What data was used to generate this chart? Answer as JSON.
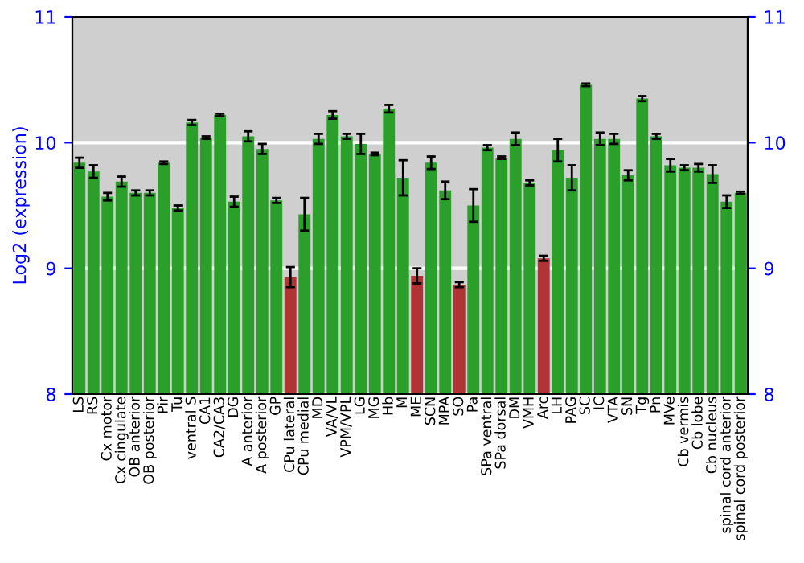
{
  "chart_data": {
    "type": "bar",
    "ylabel": "Log2 (expression)",
    "categories": [
      "LS",
      "RS",
      "Cx motor",
      "Cx cingulate",
      "OB anterior",
      "OB posterior",
      "Pir",
      "Tu",
      "ventral S",
      "CA1",
      "CA2/CA3",
      "DG",
      "A anterior",
      "A posterior",
      "GP",
      "CPu lateral",
      "CPu medial",
      "MD",
      "VA/VL",
      "VPM/VPL",
      "LG",
      "MG",
      "Hb",
      "M",
      "ME",
      "SCN",
      "MPA",
      "SO",
      "Pa",
      "SPa ventral",
      "SPa dorsal",
      "DM",
      "VMH",
      "Arc",
      "LH",
      "PAG",
      "SC",
      "IC",
      "VTA",
      "SN",
      "Tg",
      "Pn",
      "MVe",
      "Cb vermis",
      "Cb lobe",
      "Cb nucleus",
      "spinal cord anterior",
      "spinal cord posterior"
    ],
    "values": [
      9.84,
      9.77,
      9.57,
      9.69,
      9.6,
      9.6,
      9.84,
      9.48,
      10.16,
      10.04,
      10.22,
      9.53,
      10.05,
      9.95,
      9.54,
      8.93,
      9.43,
      10.03,
      10.22,
      10.05,
      9.99,
      9.91,
      10.27,
      9.72,
      8.94,
      9.84,
      9.62,
      8.87,
      9.5,
      9.96,
      9.88,
      10.03,
      9.68,
      9.08,
      9.94,
      9.72,
      10.46,
      10.03,
      10.03,
      9.74,
      10.35,
      10.05,
      9.82,
      9.8,
      9.8,
      9.75,
      9.53,
      9.6
    ],
    "errors": [
      0.04,
      0.05,
      0.03,
      0.04,
      0.02,
      0.02,
      0.01,
      0.02,
      0.02,
      0.01,
      0.01,
      0.04,
      0.04,
      0.04,
      0.02,
      0.08,
      0.13,
      0.04,
      0.03,
      0.02,
      0.08,
      0.01,
      0.03,
      0.14,
      0.06,
      0.05,
      0.07,
      0.02,
      0.13,
      0.02,
      0.01,
      0.05,
      0.02,
      0.02,
      0.09,
      0.1,
      0.01,
      0.05,
      0.04,
      0.04,
      0.02,
      0.02,
      0.05,
      0.02,
      0.03,
      0.07,
      0.05,
      0.01
    ],
    "colors": [
      "#2a9f2a",
      "#2a9f2a",
      "#2a9f2a",
      "#2a9f2a",
      "#2a9f2a",
      "#2a9f2a",
      "#2a9f2a",
      "#2a9f2a",
      "#2a9f2a",
      "#2a9f2a",
      "#2a9f2a",
      "#2a9f2a",
      "#2a9f2a",
      "#2a9f2a",
      "#2a9f2a",
      "#b03434",
      "#2a9f2a",
      "#2a9f2a",
      "#2a9f2a",
      "#2a9f2a",
      "#2a9f2a",
      "#2a9f2a",
      "#2a9f2a",
      "#2a9f2a",
      "#b03434",
      "#2a9f2a",
      "#2a9f2a",
      "#b03434",
      "#2a9f2a",
      "#2a9f2a",
      "#2a9f2a",
      "#2a9f2a",
      "#2a9f2a",
      "#b03434",
      "#2a9f2a",
      "#2a9f2a",
      "#2a9f2a",
      "#2a9f2a",
      "#2a9f2a",
      "#2a9f2a",
      "#2a9f2a",
      "#2a9f2a",
      "#2a9f2a",
      "#2a9f2a",
      "#2a9f2a",
      "#2a9f2a",
      "#2a9f2a",
      "#2a9f2a"
    ],
    "ylim": [
      8,
      11
    ],
    "yticks": [
      8,
      9,
      10,
      11
    ],
    "y2lim": [
      8,
      11
    ],
    "y2ticks": [
      8,
      9,
      10,
      11
    ],
    "grid": "y"
  }
}
